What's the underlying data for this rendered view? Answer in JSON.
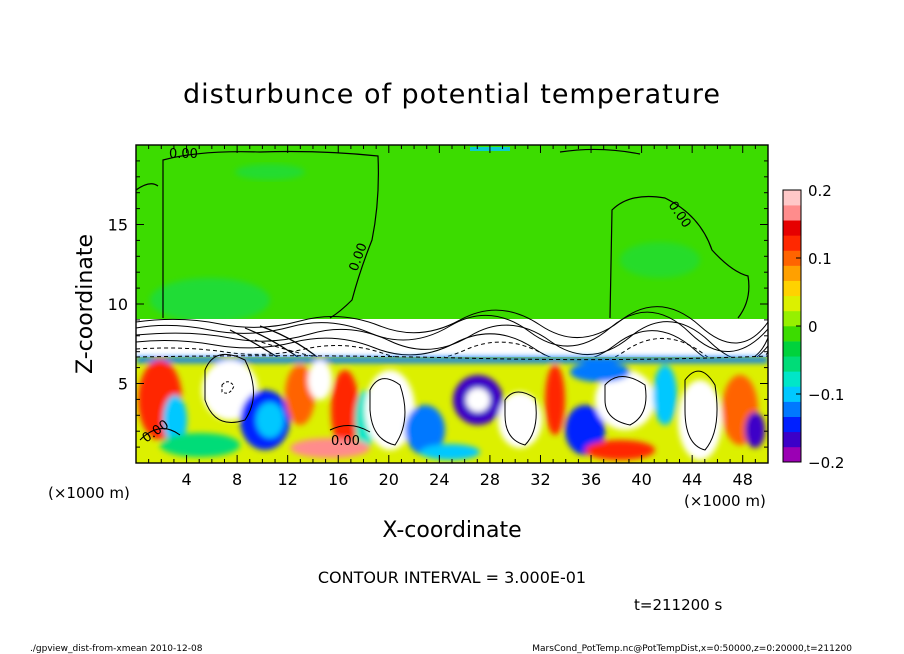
{
  "chart_data": {
    "type": "heatmap",
    "title": "disturbunce of potential temperature",
    "xlabel": "X-coordinate",
    "ylabel": "Z-coordinate",
    "x_unit": "(×1000 m)",
    "y_unit": "(×1000 m)",
    "xlim": [
      0,
      50
    ],
    "ylim": [
      0,
      20
    ],
    "x_ticks": [
      4,
      8,
      12,
      16,
      20,
      24,
      28,
      32,
      36,
      40,
      44,
      48
    ],
    "y_ticks": [
      5,
      10,
      15
    ],
    "colorbar": {
      "range": [
        -0.2,
        0.2
      ],
      "tick_values": [
        0.2,
        0.1,
        0,
        -0.1,
        -0.2
      ],
      "tick_labels": [
        "0.2",
        "0.1",
        "0",
        "−0.1",
        "−0.2"
      ],
      "colors": [
        "#9b00b4",
        "#3c00c8",
        "#0020ff",
        "#0078ff",
        "#00c8ff",
        "#00e6c8",
        "#00dc78",
        "#00d23c",
        "#3cdc00",
        "#96f000",
        "#dcf000",
        "#ffd200",
        "#ffa000",
        "#ff6400",
        "#ff2800",
        "#e60000",
        "#ff8c8c",
        "#ffc8c8"
      ]
    },
    "contour_labels": [
      "0.00",
      "0.00",
      "0.00",
      "0.00",
      "0.00"
    ],
    "contour_interval_text": "CONTOUR INTERVAL = 3.000E-01",
    "time_text": "t=211200 s",
    "footer_left": "./gpview_dist-from-xmean 2010-12-08",
    "footer_right": "MarsCond_PotTemp.nc@PotTempDist,x=0:50000,z=0:20000,t=211200"
  }
}
